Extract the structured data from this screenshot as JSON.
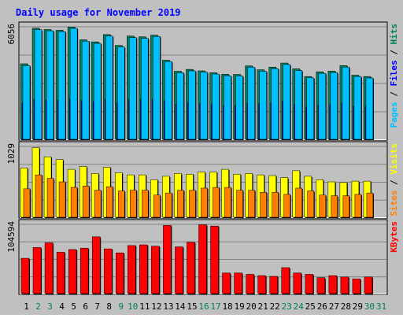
{
  "chart_data": {
    "type": "bar",
    "title": "Daily usage for November 2019",
    "categories": [
      "1",
      "2",
      "3",
      "4",
      "5",
      "6",
      "7",
      "8",
      "9",
      "10",
      "11",
      "12",
      "13",
      "14",
      "15",
      "16",
      "17",
      "18",
      "19",
      "20",
      "21",
      "22",
      "23",
      "24",
      "25",
      "26",
      "27",
      "28",
      "29",
      "30",
      "31"
    ],
    "weekend_categories": [
      "2",
      "3",
      "9",
      "10",
      "16",
      "17",
      "23",
      "24",
      "30",
      "31"
    ],
    "colors": {
      "background": "#c0c0c0",
      "hits": "#00805c",
      "files": "#0000ff",
      "pages": "#00c0ff",
      "visits": "#ffff00",
      "sites": "#ff8000",
      "kbytes": "#ff0000",
      "title": "#0000ff",
      "weekend_label": "#00805c",
      "weekday_label": "#000000"
    },
    "panels": [
      {
        "name": "top",
        "max_label": "6056",
        "ymax": 6056,
        "right_labels": [
          {
            "text": "Pages",
            "color": "#00c0ff"
          },
          {
            "text": " / ",
            "color": "#000000"
          },
          {
            "text": "Files",
            "color": "#0000ff"
          },
          {
            "text": " / ",
            "color": "#000000"
          },
          {
            "text": "Hits",
            "color": "#00805c"
          }
        ],
        "series": [
          {
            "name": "Hits",
            "values": [
              4080,
              5980,
              5910,
              5870,
              6040,
              5360,
              5250,
              5640,
              5060,
              5560,
              5520,
              5610,
              4270,
              3680,
              3780,
              3700,
              3600,
              3520,
              3510,
              3970,
              3760,
              3900,
              4120,
              3810,
              3400,
              3650,
              3690,
              3980,
              3470,
              3400,
              null
            ]
          },
          {
            "name": "Files",
            "values": [
              1980,
              2170,
              2150,
              2140,
              2200,
              2120,
              2060,
              2190,
              1980,
              2190,
              2170,
              2210,
              2110,
              1930,
              2000,
              1960,
              1900,
              1860,
              1870,
              1970,
              1950,
              2000,
              2070,
              1910,
              1780,
              1890,
              1900,
              1980,
              1820,
              1800,
              null
            ]
          },
          {
            "name": "Pages",
            "values": [
              3980,
              5900,
              5840,
              5800,
              5970,
              5290,
              5170,
              5560,
              4980,
              5480,
              5440,
              5540,
              4200,
              3600,
              3700,
              3630,
              3530,
              3440,
              3430,
              3890,
              3680,
              3820,
              4040,
              3720,
              3330,
              3570,
              3610,
              3900,
              3400,
              3320,
              null
            ]
          }
        ]
      },
      {
        "name": "middle",
        "max_label": "1029",
        "ymax": 1029,
        "right_labels": [
          {
            "text": "Sites",
            "color": "#ff8000"
          },
          {
            "text": " / ",
            "color": "#000000"
          },
          {
            "text": "Visits",
            "color": "#ffff00"
          }
        ],
        "series": [
          {
            "name": "Visits",
            "values": [
              720,
              1010,
              880,
              840,
              700,
              740,
              640,
              730,
              650,
              620,
              620,
              550,
              600,
              640,
              630,
              660,
              660,
              700,
              630,
              640,
              620,
              610,
              580,
              680,
              600,
              550,
              520,
              510,
              530,
              530,
              null
            ]
          },
          {
            "name": "Sites",
            "values": [
              420,
              620,
              570,
              520,
              440,
              460,
              400,
              450,
              390,
              400,
              400,
              330,
              360,
              400,
              400,
              430,
              440,
              440,
              400,
              400,
              370,
              370,
              340,
              430,
              390,
              330,
              320,
              320,
              340,
              360,
              null
            ]
          }
        ]
      },
      {
        "name": "bottom",
        "max_label": "104594",
        "ymax": 104594,
        "right_labels": [
          {
            "text": "KBytes",
            "color": "#ff0000"
          }
        ],
        "series": [
          {
            "name": "KBytes",
            "values": [
              54000,
              70000,
              77000,
              63000,
              67000,
              69000,
              86000,
              68000,
              62000,
              73000,
              74000,
              72000,
              103000,
              71000,
              78000,
              104000,
              102000,
              32000,
              32000,
              30000,
              28000,
              27000,
              40000,
              32000,
              30000,
              25000,
              28000,
              26000,
              23000,
              26000,
              null
            ]
          }
        ]
      }
    ]
  }
}
